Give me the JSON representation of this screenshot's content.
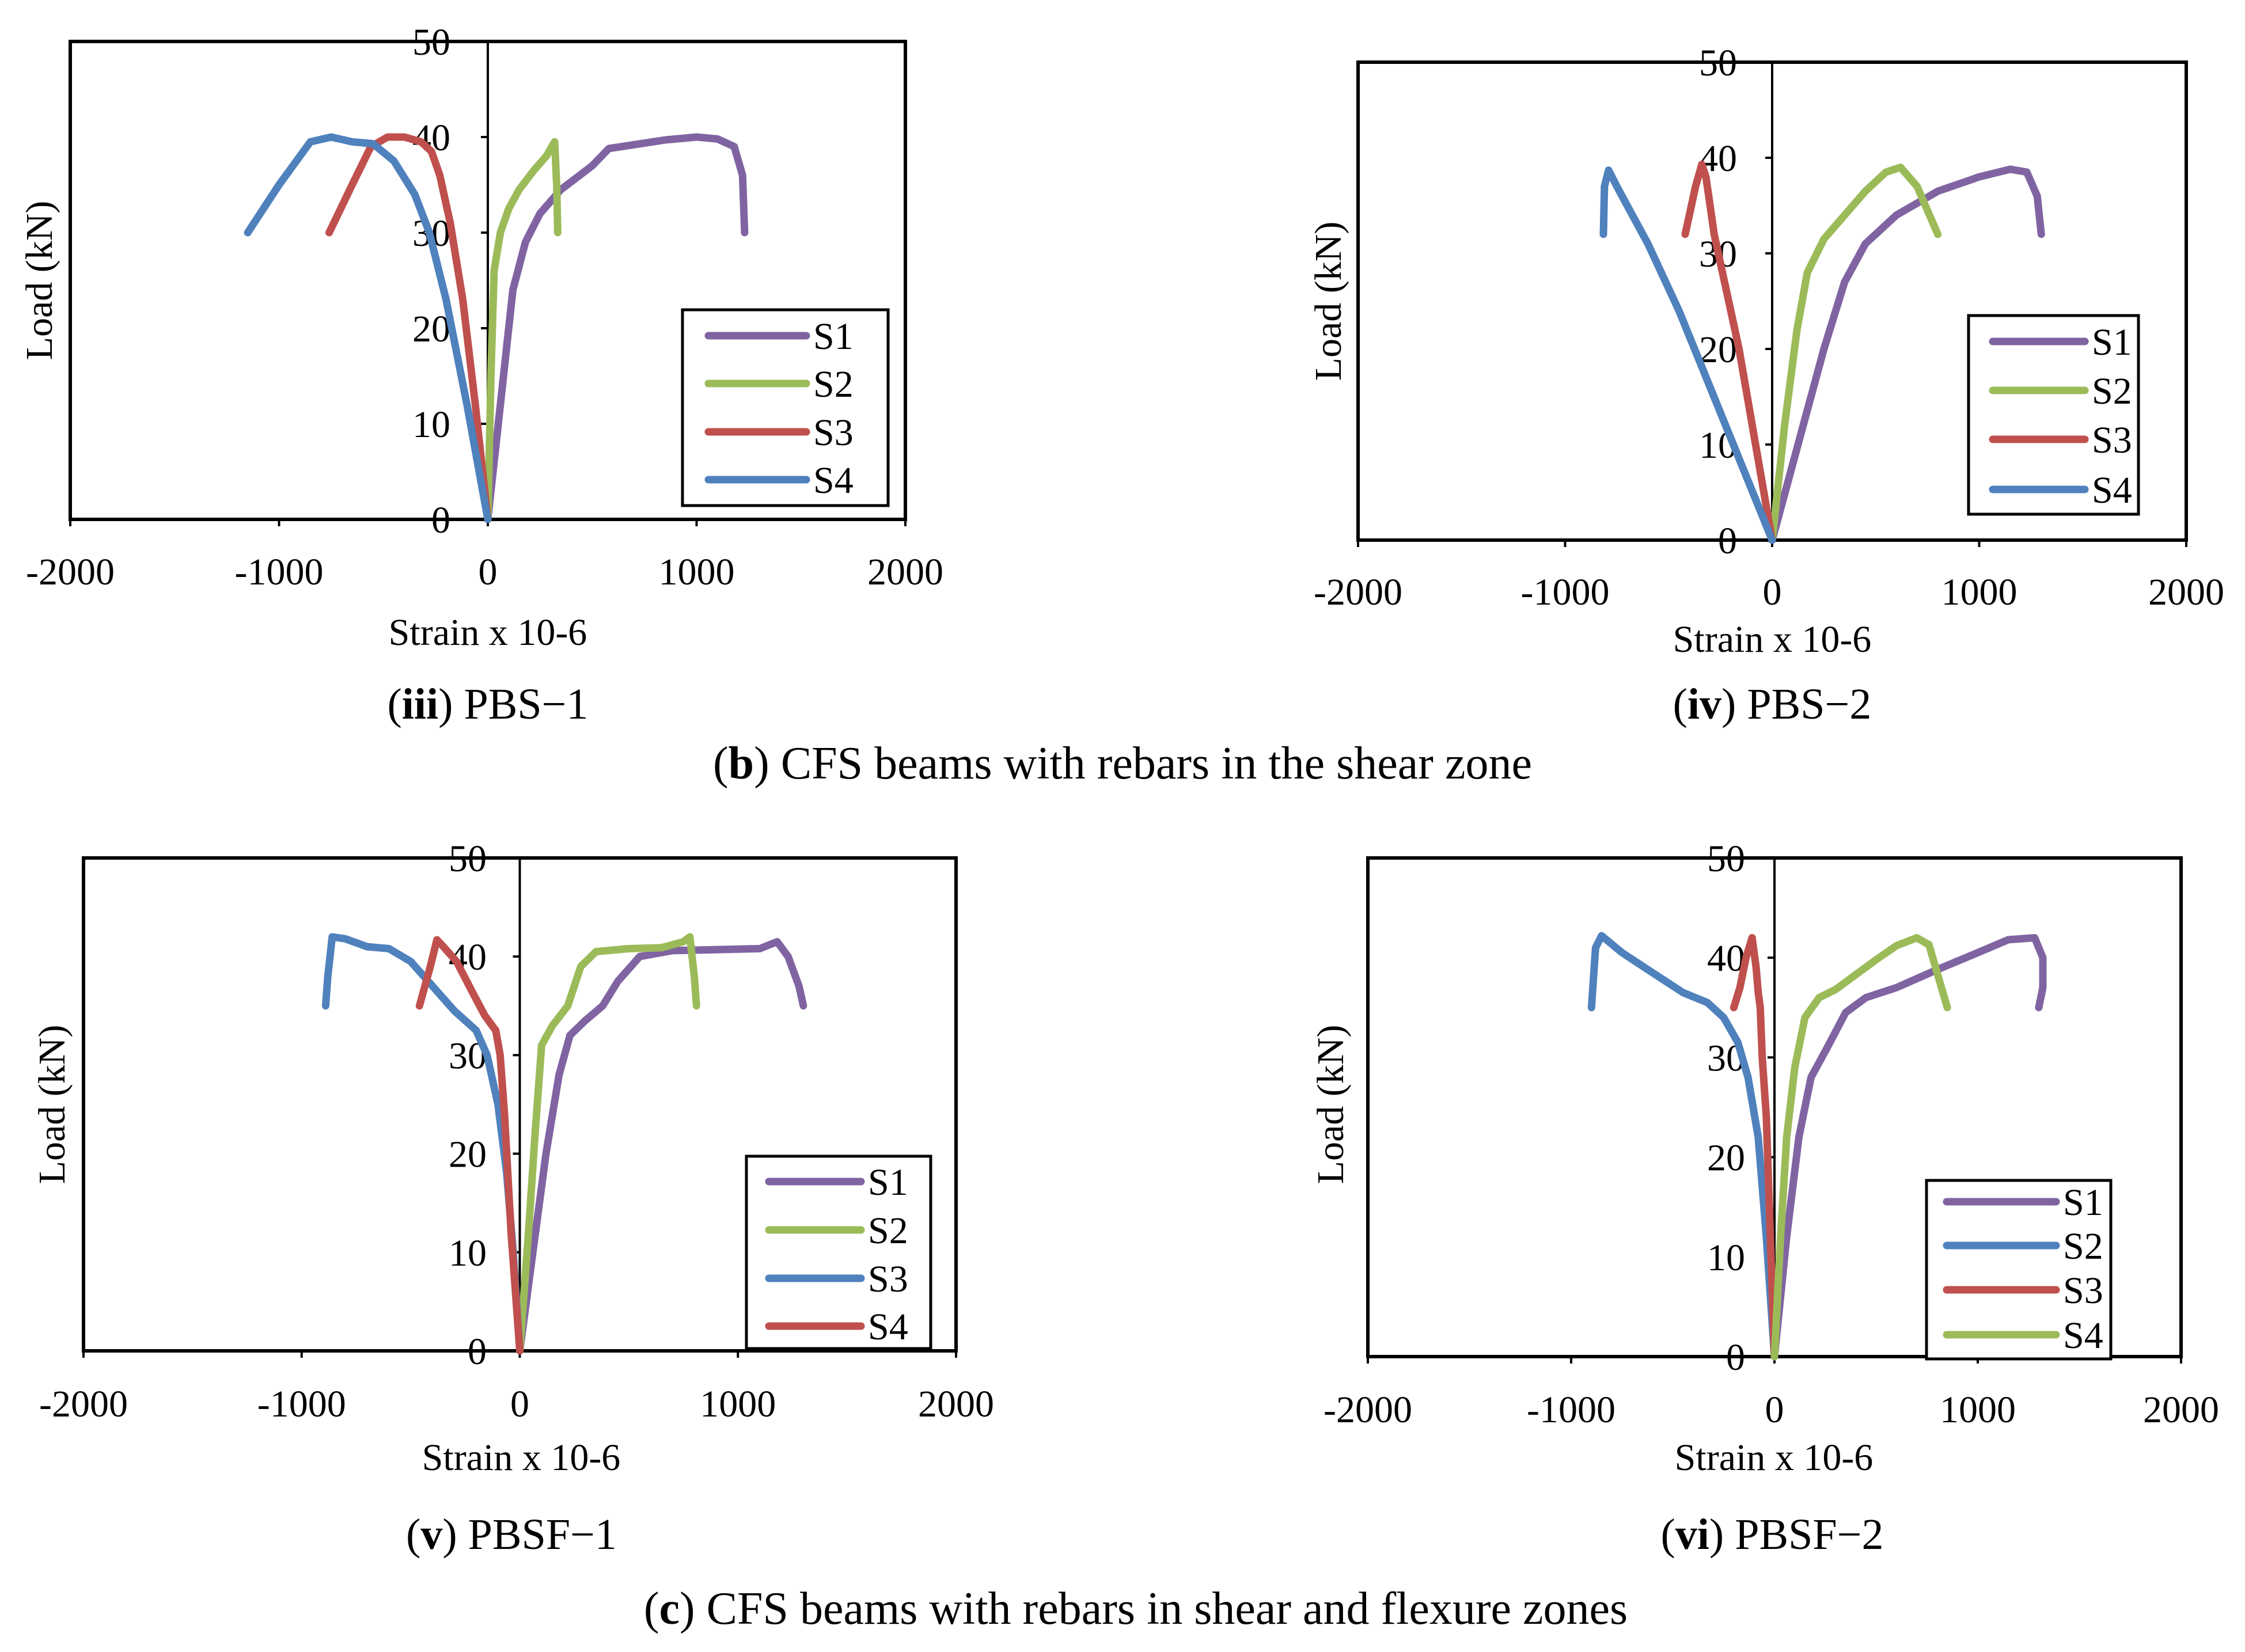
{
  "figure": {
    "caption_b": {
      "letter": "b",
      "rest": " CFS beams with rebars in the shear zone"
    },
    "caption_c": {
      "letter": "c",
      "rest": " CFS beams with rebars in shear and flexure zones"
    }
  },
  "colors": {
    "purple": "#8064A2",
    "green": "#9BBB59",
    "red": "#C0504D",
    "blue": "#4F81BD"
  },
  "chart_data": [
    {
      "id": "pbs1",
      "type": "line",
      "caption": {
        "num": "iii",
        "name": " PBS−1"
      },
      "xlabel": "Strain x 10-6",
      "ylabel": "Load (kN)",
      "xlim": [
        -2000,
        2000
      ],
      "ylim": [
        0,
        50
      ],
      "xticks": [
        -2000,
        -1000,
        0,
        1000,
        2000
      ],
      "yticks": [
        0,
        10,
        20,
        30,
        40,
        50
      ],
      "grid": false,
      "legend": "bottom-right",
      "series": [
        {
          "name": "S1",
          "color": "#8064A2",
          "points": [
            [
              0,
              0
            ],
            [
              60,
              12
            ],
            [
              120,
              24
            ],
            [
              180,
              29
            ],
            [
              250,
              32
            ],
            [
              350,
              34.5
            ],
            [
              500,
              37
            ],
            [
              580,
              38.8
            ],
            [
              700,
              39.2
            ],
            [
              850,
              39.7
            ],
            [
              1000,
              40
            ],
            [
              1100,
              39.8
            ],
            [
              1180,
              39
            ],
            [
              1220,
              36
            ],
            [
              1230,
              30
            ]
          ]
        },
        {
          "name": "S2",
          "color": "#9BBB59",
          "points": [
            [
              0,
              0
            ],
            [
              15,
              15
            ],
            [
              30,
              26
            ],
            [
              60,
              30
            ],
            [
              100,
              32.5
            ],
            [
              150,
              34.5
            ],
            [
              220,
              36.5
            ],
            [
              280,
              38
            ],
            [
              320,
              39.5
            ],
            [
              330,
              35
            ],
            [
              335,
              30
            ]
          ]
        },
        {
          "name": "S3",
          "color": "#C0504D",
          "points": [
            [
              0,
              0
            ],
            [
              -60,
              12
            ],
            [
              -120,
              23
            ],
            [
              -180,
              31
            ],
            [
              -230,
              36
            ],
            [
              -270,
              38.5
            ],
            [
              -320,
              39.5
            ],
            [
              -400,
              40
            ],
            [
              -480,
              40
            ],
            [
              -560,
              39
            ],
            [
              -650,
              35
            ],
            [
              -760,
              30
            ]
          ]
        },
        {
          "name": "S4",
          "color": "#4F81BD",
          "points": [
            [
              0,
              0
            ],
            [
              -100,
              12
            ],
            [
              -200,
              23
            ],
            [
              -280,
              30
            ],
            [
              -350,
              34
            ],
            [
              -450,
              37.5
            ],
            [
              -550,
              39.3
            ],
            [
              -650,
              39.5
            ],
            [
              -750,
              40
            ],
            [
              -850,
              39.5
            ],
            [
              -1000,
              35
            ],
            [
              -1150,
              30
            ]
          ]
        }
      ]
    },
    {
      "id": "pbs2",
      "type": "line",
      "caption": {
        "num": "iv",
        "name": " PBS−2"
      },
      "xlabel": "Strain x 10-6",
      "ylabel": "Load (kN)",
      "xlim": [
        -2000,
        2000
      ],
      "ylim": [
        0,
        50
      ],
      "xticks": [
        -2000,
        -1000,
        0,
        1000,
        2000
      ],
      "yticks": [
        0,
        10,
        20,
        30,
        40,
        50
      ],
      "grid": false,
      "legend": "bottom-right",
      "series": [
        {
          "name": "S1",
          "color": "#8064A2",
          "points": [
            [
              0,
              0
            ],
            [
              150,
              12
            ],
            [
              250,
              20
            ],
            [
              350,
              27
            ],
            [
              450,
              31
            ],
            [
              600,
              34
            ],
            [
              800,
              36.5
            ],
            [
              1000,
              38
            ],
            [
              1150,
              38.8
            ],
            [
              1230,
              38.5
            ],
            [
              1280,
              36
            ],
            [
              1300,
              32
            ]
          ]
        },
        {
          "name": "S2",
          "color": "#9BBB59",
          "points": [
            [
              0,
              0
            ],
            [
              60,
              12
            ],
            [
              120,
              22
            ],
            [
              170,
              28
            ],
            [
              250,
              31.5
            ],
            [
              350,
              34
            ],
            [
              450,
              36.5
            ],
            [
              550,
              38.5
            ],
            [
              620,
              39
            ],
            [
              700,
              37
            ],
            [
              780,
              33
            ],
            [
              800,
              32
            ]
          ]
        },
        {
          "name": "S3",
          "color": "#C0504D",
          "points": [
            [
              0,
              0
            ],
            [
              -80,
              10
            ],
            [
              -160,
              20
            ],
            [
              -240,
              28
            ],
            [
              -280,
              32
            ],
            [
              -300,
              35
            ],
            [
              -320,
              38
            ],
            [
              -340,
              39.3
            ],
            [
              -370,
              37
            ],
            [
              -400,
              34
            ],
            [
              -420,
              32
            ]
          ]
        },
        {
          "name": "S4",
          "color": "#4F81BD",
          "points": [
            [
              0,
              0
            ],
            [
              -150,
              8
            ],
            [
              -300,
              16
            ],
            [
              -450,
              24
            ],
            [
              -600,
              31
            ],
            [
              -700,
              35
            ],
            [
              -750,
              37
            ],
            [
              -790,
              38.7
            ],
            [
              -810,
              37
            ],
            [
              -815,
              32
            ]
          ]
        }
      ]
    },
    {
      "id": "pbsf1",
      "type": "line",
      "caption": {
        "num": "v",
        "name": " PBSF−1"
      },
      "xlabel": "Strain x 10-6",
      "ylabel": "Load (kN)",
      "xlim": [
        -2000,
        2000
      ],
      "ylim": [
        0,
        50
      ],
      "xticks": [
        -2000,
        -1000,
        0,
        1000,
        2000
      ],
      "yticks": [
        0,
        10,
        20,
        30,
        40,
        50
      ],
      "grid": false,
      "legend": "bottom-right",
      "series": [
        {
          "name": "S1",
          "color": "#8064A2",
          "points": [
            [
              0,
              0
            ],
            [
              60,
              10
            ],
            [
              120,
              20
            ],
            [
              180,
              28
            ],
            [
              230,
              32
            ],
            [
              300,
              33.5
            ],
            [
              380,
              35
            ],
            [
              450,
              37.5
            ],
            [
              550,
              40
            ],
            [
              700,
              40.6
            ],
            [
              900,
              40.7
            ],
            [
              1100,
              40.8
            ],
            [
              1180,
              41.5
            ],
            [
              1230,
              40
            ],
            [
              1280,
              37
            ],
            [
              1300,
              35
            ]
          ]
        },
        {
          "name": "S2",
          "color": "#9BBB59",
          "points": [
            [
              0,
              0
            ],
            [
              40,
              12
            ],
            [
              70,
              22
            ],
            [
              100,
              31
            ],
            [
              150,
              33
            ],
            [
              220,
              35
            ],
            [
              280,
              39
            ],
            [
              350,
              40.5
            ],
            [
              500,
              40.8
            ],
            [
              650,
              40.9
            ],
            [
              750,
              41.5
            ],
            [
              780,
              42
            ],
            [
              800,
              38
            ],
            [
              810,
              35
            ]
          ]
        },
        {
          "name": "S3",
          "color": "#4F81BD",
          "points": [
            [
              0,
              0
            ],
            [
              -30,
              10
            ],
            [
              -60,
              18
            ],
            [
              -100,
              25
            ],
            [
              -150,
              30
            ],
            [
              -200,
              32.5
            ],
            [
              -300,
              34.5
            ],
            [
              -400,
              37
            ],
            [
              -500,
              39.5
            ],
            [
              -600,
              40.8
            ],
            [
              -700,
              41
            ],
            [
              -800,
              41.8
            ],
            [
              -860,
              42
            ],
            [
              -880,
              38
            ],
            [
              -890,
              35
            ]
          ]
        },
        {
          "name": "S4",
          "color": "#C0504D",
          "points": [
            [
              0,
              0
            ],
            [
              -40,
              12
            ],
            [
              -70,
              24
            ],
            [
              -90,
              30
            ],
            [
              -110,
              32.5
            ],
            [
              -160,
              34
            ],
            [
              -220,
              36.5
            ],
            [
              -290,
              39.5
            ],
            [
              -350,
              41
            ],
            [
              -380,
              41.7
            ],
            [
              -410,
              39
            ],
            [
              -460,
              35
            ]
          ]
        }
      ]
    },
    {
      "id": "pbsf2",
      "type": "line",
      "caption": {
        "num": "vi",
        "name": " PBSF−2"
      },
      "xlabel": "Strain x 10-6",
      "ylabel": "Load (kN)",
      "xlim": [
        -2000,
        2000
      ],
      "ylim": [
        0,
        50
      ],
      "xticks": [
        -2000,
        -1000,
        0,
        1000,
        2000
      ],
      "yticks": [
        0,
        10,
        20,
        30,
        40,
        50
      ],
      "grid": false,
      "legend": "bottom-right",
      "series": [
        {
          "name": "S1",
          "color": "#8064A2",
          "points": [
            [
              0,
              0
            ],
            [
              60,
              12
            ],
            [
              120,
              22
            ],
            [
              180,
              28
            ],
            [
              260,
              31
            ],
            [
              350,
              34.5
            ],
            [
              450,
              36
            ],
            [
              600,
              37
            ],
            [
              800,
              38.8
            ],
            [
              1000,
              40.5
            ],
            [
              1150,
              41.8
            ],
            [
              1280,
              42
            ],
            [
              1320,
              40
            ],
            [
              1320,
              37
            ],
            [
              1300,
              35
            ]
          ]
        },
        {
          "name": "S2",
          "color": "#4F81BD",
          "points": [
            [
              0,
              0
            ],
            [
              -40,
              12
            ],
            [
              -80,
              22
            ],
            [
              -130,
              28
            ],
            [
              -180,
              31.5
            ],
            [
              -250,
              34
            ],
            [
              -330,
              35.5
            ],
            [
              -450,
              36.5
            ],
            [
              -600,
              38.5
            ],
            [
              -750,
              40.5
            ],
            [
              -850,
              42.2
            ],
            [
              -880,
              41
            ],
            [
              -890,
              38
            ],
            [
              -900,
              35
            ]
          ]
        },
        {
          "name": "S3",
          "color": "#C0504D",
          "points": [
            [
              0,
              0
            ],
            [
              -20,
              12
            ],
            [
              -40,
              24
            ],
            [
              -60,
              30
            ],
            [
              -70,
              35
            ],
            [
              -80,
              36.5
            ],
            [
              -90,
              39
            ],
            [
              -110,
              42
            ],
            [
              -140,
              40
            ],
            [
              -170,
              37
            ],
            [
              -200,
              35
            ]
          ]
        },
        {
          "name": "S4",
          "color": "#9BBB59",
          "points": [
            [
              0,
              0
            ],
            [
              30,
              12
            ],
            [
              60,
              22
            ],
            [
              100,
              29
            ],
            [
              150,
              34
            ],
            [
              220,
              36
            ],
            [
              300,
              36.8
            ],
            [
              400,
              38.3
            ],
            [
              500,
              39.8
            ],
            [
              600,
              41.2
            ],
            [
              700,
              42
            ],
            [
              760,
              41.3
            ],
            [
              800,
              38.5
            ],
            [
              850,
              35
            ]
          ]
        }
      ]
    }
  ]
}
